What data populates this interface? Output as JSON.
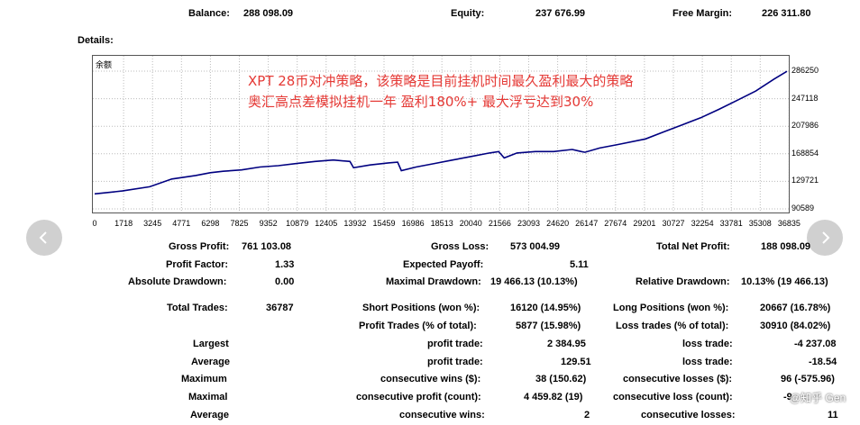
{
  "summary": {
    "balance_label": "Balance:",
    "balance_value": "288 098.09",
    "equity_label": "Equity:",
    "equity_value": "237 676.99",
    "free_margin_label": "Free Margin:",
    "free_margin_value": "226 311.80"
  },
  "details_label": "Details:",
  "chart_data": {
    "type": "line",
    "title": "",
    "legend_label": "余额",
    "annotation_line1": "XPT 28币对冲策略，该策略是目前挂机时间最久盈利最大的策略",
    "annotation_line2": "奥汇高点差模拟挂机一年 盈利180%+ 最大浮亏达到30%",
    "x_ticks": [
      "0",
      "1718",
      "3245",
      "4771",
      "6298",
      "7825",
      "9352",
      "10879",
      "12405",
      "13932",
      "15459",
      "16986",
      "18513",
      "20040",
      "21566",
      "23093",
      "24620",
      "26147",
      "27674",
      "29201",
      "30727",
      "32254",
      "33781",
      "35308",
      "36835"
    ],
    "y_ticks": [
      "286250",
      "247118",
      "207986",
      "168854",
      "129721",
      "90589"
    ],
    "xlim": [
      0,
      37700
    ],
    "ylim": [
      90589,
      286250
    ],
    "grid": true,
    "line_color": "#000080",
    "series": [
      {
        "x": [
          0,
          1500,
          3000,
          4200,
          5500,
          6300,
          7000,
          8000,
          9000,
          10000,
          11000,
          12000,
          13000,
          13900,
          14100,
          15000,
          16000,
          16500,
          16700,
          17500,
          18500,
          19500,
          20500,
          21500,
          22000,
          22300,
          23000,
          24000,
          25000,
          26000,
          26500,
          26700,
          27500,
          28500,
          30000,
          31000,
          32000,
          33000,
          34000,
          35000,
          36000,
          37000,
          37700
        ],
        "y": [
          112000,
          116000,
          122000,
          133000,
          138000,
          142000,
          144000,
          146000,
          150000,
          152000,
          155000,
          158000,
          160000,
          158000,
          149000,
          153000,
          156000,
          157000,
          145000,
          150000,
          155000,
          160000,
          165000,
          170000,
          172000,
          163000,
          170000,
          172000,
          172000,
          175000,
          172000,
          171000,
          177000,
          182000,
          190000,
          200000,
          210000,
          220000,
          232000,
          245000,
          258000,
          275000,
          286000
        ]
      }
    ]
  },
  "stats": {
    "gross_profit_label": "Gross Profit:",
    "gross_profit_value": "761 103.08",
    "gross_loss_label": "Gross Loss:",
    "gross_loss_value": "573 004.99",
    "total_net_profit_label": "Total Net Profit:",
    "total_net_profit_value": "188 098.09",
    "profit_factor_label": "Profit Factor:",
    "profit_factor_value": "1.33",
    "expected_payoff_label": "Expected Payoff:",
    "expected_payoff_value": "5.11",
    "absolute_drawdown_label": "Absolute Drawdown:",
    "absolute_drawdown_value": "0.00",
    "maximal_drawdown_label": "Maximal Drawdown:",
    "maximal_drawdown_value": "19 466.13 (10.13%)",
    "relative_drawdown_label": "Relative Drawdown:",
    "relative_drawdown_value": "10.13% (19 466.13)",
    "total_trades_label": "Total Trades:",
    "total_trades_value": "36787",
    "short_positions_label": "Short Positions (won %):",
    "short_positions_value": "16120 (14.95%)",
    "long_positions_label": "Long Positions (won %):",
    "long_positions_value": "20667 (16.78%)",
    "profit_trades_label": "Profit Trades (% of total):",
    "profit_trades_value": "5877 (15.98%)",
    "loss_trades_label": "Loss trades (% of total):",
    "loss_trades_value": "30910 (84.02%)",
    "largest_label": "Largest",
    "largest_profit_label": "profit trade:",
    "largest_profit_value": "2 384.95",
    "largest_loss_label": "loss trade:",
    "largest_loss_value": "-4 237.08",
    "average_label": "Average",
    "average_profit_label": "profit trade:",
    "average_profit_value": "129.51",
    "average_loss_label": "loss trade:",
    "average_loss_value": "-18.54",
    "maximum_label": "Maximum",
    "max_cons_wins_label": "consecutive wins ($):",
    "max_cons_wins_value": "38 (150.62)",
    "max_cons_losses_label": "consecutive losses ($):",
    "max_cons_losses_value": "96 (-575.96)",
    "maximal_label": "Maximal",
    "maximal_cons_profit_label": "consecutive profit (count):",
    "maximal_cons_profit_value": "4 459.82 (19)",
    "maximal_cons_loss_label": "consecutive loss (count):",
    "maximal_cons_loss_value": "-9",
    "average2_label": "Average",
    "avg_cons_wins_label": "consecutive wins:",
    "avg_cons_wins_value": "2",
    "avg_cons_losses_label": "consecutive losses:",
    "avg_cons_losses_value": "11"
  },
  "watermark": "@知乎 Gen",
  "nav": {
    "prev_icon": "chevron-left-icon",
    "next_icon": "chevron-right-icon"
  }
}
